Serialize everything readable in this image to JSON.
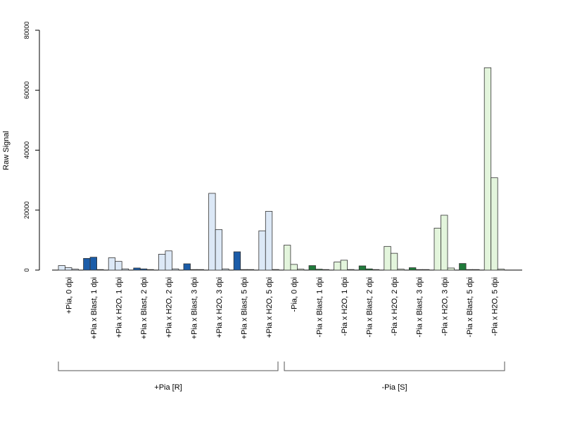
{
  "chart_data": {
    "type": "bar",
    "ylabel": "Raw Signal",
    "ylim": [
      0,
      80000
    ],
    "yticks": [
      "0",
      "20000",
      "40000",
      "60000",
      "80000"
    ],
    "grid": false,
    "categories": [
      "+Pia, 0 dpi",
      "+Pia x Blast, 1 dpi",
      "+Pia x H2O, 1 dpi",
      "+Pia x Blast, 2 dpi",
      "+Pia x H2O, 2 dpi",
      "+Pia x Blast, 3 dpi",
      "+Pia x H2O, 3 dpi",
      "+Pia x Blast, 5 dpi",
      "+Pia x H2O, 5 dpi",
      "-Pia, 0 dpi",
      "-Pia x Blast, 1 dpi",
      "-Pia x H2O, 1 dpi",
      "-Pia x Blast, 2 dpi",
      "-Pia x H2O, 2 dpi",
      "-Pia x Blast, 3 dpi",
      "-Pia x H2O, 3 dpi",
      "-Pia x Blast, 5 dpi",
      "-Pia x H2O, 5 dpi"
    ],
    "bar_colors": [
      "#dce8f6",
      "#1b5ca8",
      "#dce8f6",
      "#1b5ca8",
      "#dce8f6",
      "#1b5ca8",
      "#dce8f6",
      "#1b5ca8",
      "#dce8f6",
      "#e3f5dc",
      "#1f7a3a",
      "#e3f5dc",
      "#1f7a3a",
      "#e3f5dc",
      "#1f7a3a",
      "#e3f5dc",
      "#1f7a3a",
      "#e3f5dc"
    ],
    "replicates": [
      [
        1500,
        800,
        300
      ],
      [
        3900,
        4300,
        100
      ],
      [
        4100,
        2900,
        400
      ],
      [
        700,
        400,
        100
      ],
      [
        5300,
        6400,
        400
      ],
      [
        2100,
        100,
        100
      ],
      [
        25600,
        13500,
        400
      ],
      [
        6100,
        100,
        100
      ],
      [
        13100,
        19600,
        200
      ],
      [
        8300,
        1900,
        300
      ],
      [
        1500,
        300,
        100
      ],
      [
        2700,
        3300,
        200
      ],
      [
        1400,
        400,
        100
      ],
      [
        7900,
        5600,
        300
      ],
      [
        800,
        100,
        100
      ],
      [
        14000,
        18300,
        700
      ],
      [
        2200,
        100,
        100
      ],
      [
        67500,
        30800,
        300
      ]
    ],
    "groups": [
      {
        "label": "+Pia [R]",
        "from": 0,
        "to": 8
      },
      {
        "label": "-Pia [S]",
        "from": 9,
        "to": 17
      }
    ]
  }
}
